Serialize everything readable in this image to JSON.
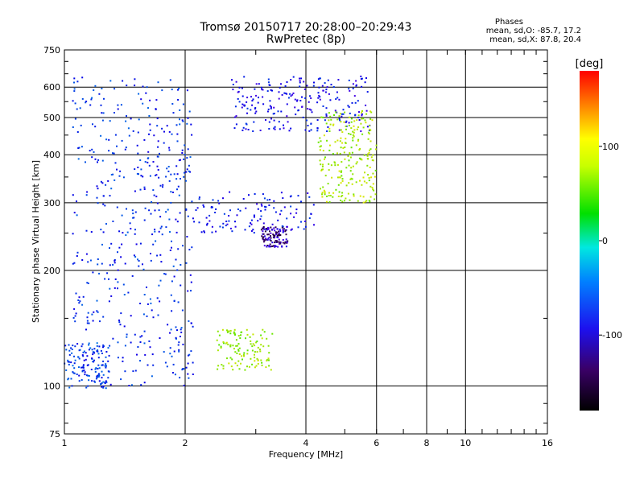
{
  "header": {
    "title_line1": "Tromsø 20150717 20:28:00–20:29:43",
    "title_line2": "RwPretec (8p)"
  },
  "stats": {
    "heading": "Phases",
    "o_line": "mean, sd,O: -85.7, 17.2",
    "x_line": "mean, sd,X:  87.8, 20.4"
  },
  "colorbar": {
    "unit_label": "[deg]",
    "ticks": [
      "100",
      "0",
      "-100"
    ],
    "tick_values": [
      100,
      0,
      -100
    ],
    "range": [
      -180,
      180
    ]
  },
  "chart_data": {
    "type": "scatter",
    "xlabel": "Frequency [MHz]",
    "ylabel": "Stationary phase Virtual Height [km]",
    "xscale": "log",
    "yscale": "log",
    "xlim": [
      1,
      16
    ],
    "ylim": [
      75,
      750
    ],
    "x_ticks": [
      1,
      2,
      4,
      6,
      8,
      10,
      16
    ],
    "x_tick_labels": [
      "1",
      "2",
      "4",
      "6",
      "8",
      "10",
      "16"
    ],
    "y_ticks": [
      75,
      100,
      200,
      300,
      400,
      500,
      600,
      750
    ],
    "y_tick_labels": [
      "75",
      "100",
      "200",
      "300",
      "400",
      "500",
      "600",
      "750"
    ],
    "grid": true,
    "clusters": [
      {
        "region": "main-ordinary-trace",
        "phase_deg": -100,
        "x": [
          1.05,
          2.1
        ],
        "y": [
          100,
          640
        ]
      },
      {
        "region": "lower-left-ramp",
        "phase_deg": -95,
        "x": [
          1.0,
          1.3
        ],
        "y": [
          98,
          130
        ]
      },
      {
        "region": "f-layer-cusp",
        "phase_deg": -110,
        "x": [
          2.1,
          4.2
        ],
        "y": [
          250,
          320
        ]
      },
      {
        "region": "upper-band",
        "phase_deg": -115,
        "x": [
          2.6,
          5.8
        ],
        "y": [
          460,
          640
        ]
      },
      {
        "region": "extraordinary-trace",
        "phase_deg": 85,
        "x": [
          4.3,
          6.0
        ],
        "y": [
          300,
          520
        ]
      },
      {
        "region": "extraordinary-patch",
        "phase_deg": 80,
        "x": [
          2.4,
          3.3
        ],
        "y": [
          110,
          140
        ]
      },
      {
        "region": "violet-patch",
        "phase_deg": -140,
        "x": [
          3.1,
          3.6
        ],
        "y": [
          230,
          260
        ]
      }
    ]
  }
}
